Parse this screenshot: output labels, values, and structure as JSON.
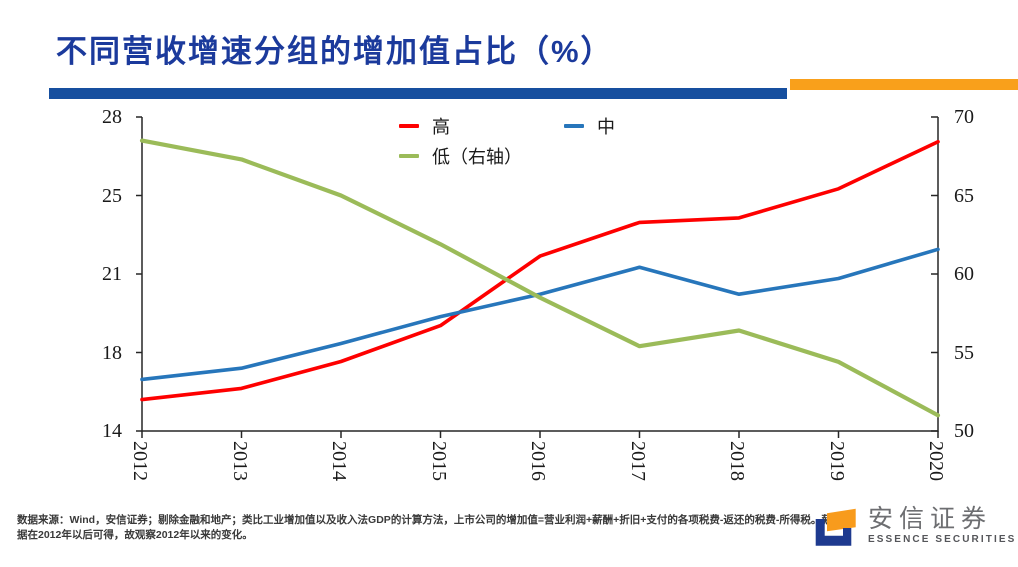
{
  "header": {
    "title": "不同营收增速分组的增加值占比（%）",
    "title_color": "#1B3A9C",
    "underline_color": "#164F9F",
    "accent_bar_color": "#F9A01B"
  },
  "chart_data": {
    "type": "line",
    "x": [
      2012,
      2013,
      2014,
      2015,
      2016,
      2017,
      2018,
      2019,
      2020
    ],
    "series": [
      {
        "name": "高",
        "axis": "left",
        "color": "#FE0000",
        "values": [
          15.4,
          15.9,
          17.1,
          18.7,
          21.8,
          23.3,
          23.5,
          24.8,
          26.9
        ]
      },
      {
        "name": "中",
        "axis": "left",
        "color": "#2776BB",
        "values": [
          16.3,
          16.8,
          17.9,
          19.1,
          20.1,
          21.3,
          20.1,
          20.8,
          22.1
        ]
      },
      {
        "name": "低（右轴）",
        "axis": "right",
        "color": "#9BBB59",
        "values": [
          68.5,
          67.3,
          65.0,
          61.9,
          58.5,
          55.4,
          56.4,
          54.4,
          51.0
        ]
      }
    ],
    "left_axis": {
      "min": 14,
      "max": 28,
      "tick_labels": [
        "28",
        "25",
        "21",
        "18",
        "14"
      ],
      "tick_values": [
        28,
        24.5,
        21,
        17.5,
        14
      ]
    },
    "right_axis": {
      "min": 50,
      "max": 70,
      "tick_labels": [
        "70",
        "65",
        "60",
        "55",
        "50"
      ],
      "tick_values": [
        70,
        65,
        60,
        55,
        50
      ]
    },
    "x_tick_labels": [
      "2012",
      "2013",
      "2014",
      "2015",
      "2016",
      "2017",
      "2018",
      "2019",
      "2020"
    ],
    "legend_position": "top-center",
    "grid": false,
    "axis_color": "#262626"
  },
  "footer": {
    "source_line1": "数据来源：Wind，安信证券；剔除金融和地产；类比工业增加值以及收入法GDP的计算方法，上市公司的增加值=营业利润+薪酬+折旧+支付的各项税费-返还的税费-所得税。薪酬数",
    "source_line2": "据在2012年以后可得，故观察2012年以来的变化。",
    "logo": {
      "cn_name": "安信证券",
      "en_name": "ESSENCE SECURITIES",
      "orange": "#F89B1C",
      "blue": "#1E3A8F",
      "cn_color": "#6D6E71",
      "en_color": "#55565A"
    }
  }
}
